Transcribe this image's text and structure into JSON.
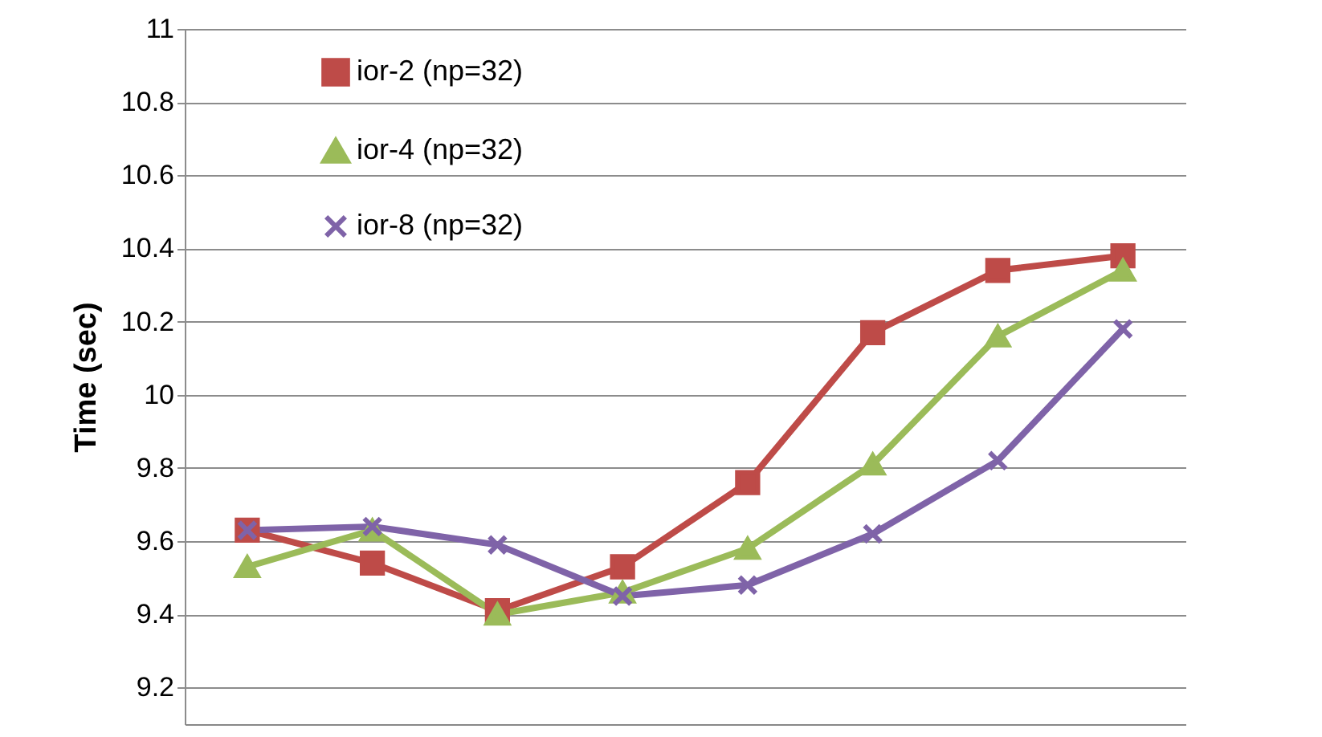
{
  "chart_data": {
    "type": "line",
    "ylabel": "Time (sec)",
    "categories": [
      null,
      null,
      null,
      null,
      null,
      null,
      null,
      null
    ],
    "ylim": [
      9.1,
      11
    ],
    "yticks": [
      9.2,
      9.4,
      9.6,
      9.8,
      10,
      10.2,
      10.4,
      10.6,
      10.8,
      11
    ],
    "grid": "y",
    "legend": "top left",
    "tick_labels": "y",
    "line_style": "solid",
    "series": [
      {
        "name": "ior-2 (np=32)",
        "color": "#be4b48",
        "marker": "square",
        "values": [
          9.63,
          9.54,
          9.41,
          9.53,
          9.76,
          10.17,
          10.34,
          10.38
        ]
      },
      {
        "name": "ior-4 (np=32)",
        "color": "#9bbb59",
        "marker": "triangle",
        "values": [
          9.53,
          9.63,
          9.4,
          9.46,
          9.58,
          9.81,
          10.16,
          10.34
        ]
      },
      {
        "name": "ior-8 (np=32)",
        "color": "#7f63a8",
        "marker": "cross",
        "values": [
          9.63,
          9.64,
          9.59,
          9.45,
          9.48,
          9.62,
          9.82,
          10.18
        ]
      }
    ]
  }
}
